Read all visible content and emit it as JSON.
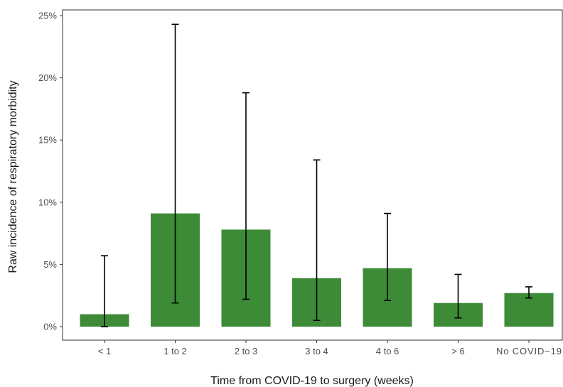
{
  "chart_data": {
    "type": "bar",
    "title": "",
    "xlabel": "Time from COVID-19 to surgery (weeks)",
    "ylabel": "Raw incidence of respiratory morbidity",
    "categories": [
      "< 1",
      "1 to 2",
      "2 to 3",
      "3 to 4",
      "4 to 6",
      "> 6",
      "No COVID−19"
    ],
    "values": [
      1.0,
      9.1,
      7.8,
      3.9,
      4.7,
      1.9,
      2.7
    ],
    "error_low": [
      0.0,
      1.9,
      2.2,
      0.5,
      2.1,
      0.7,
      2.3
    ],
    "error_high": [
      5.7,
      24.3,
      18.8,
      13.4,
      9.1,
      4.2,
      3.2
    ],
    "ylim": [
      0,
      25
    ],
    "yticks": [
      0,
      5,
      10,
      15,
      20,
      25
    ],
    "ytick_labels": [
      "0%",
      "5%",
      "10%",
      "15%",
      "20%",
      "25%"
    ],
    "bar_color": "#3d8b37",
    "grid": false,
    "legend": "none"
  }
}
